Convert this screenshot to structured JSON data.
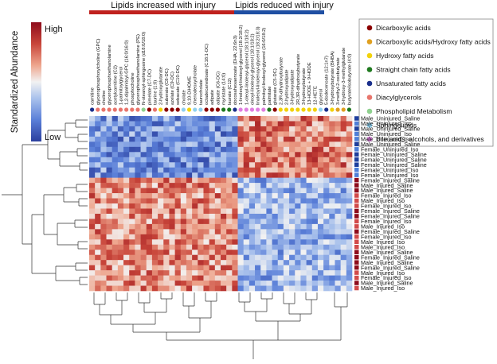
{
  "chart_data": {
    "type": "heatmap",
    "title": "",
    "group_labels": [
      "Lipids increased with injury",
      "Lipids reduced with injury"
    ],
    "group_colors": [
      "#c0211e",
      "#1f4fa3"
    ],
    "colorbar": {
      "label": "Standardized Abundance",
      "high_label": "High",
      "low_label": "Low",
      "stops": [
        "#8e0c1c",
        "#c8453a",
        "#eea58d",
        "#f2f2f2",
        "#a9c1ec",
        "#5a7fd8",
        "#2b3f9e"
      ]
    },
    "columns": [
      "carnitine",
      "glycerophosphorylcholine (GPC)",
      "choline",
      "glycerophosphoethanolamine",
      "acetylcarnitine (C2)",
      "1-palmitoylglycerol",
      "1,2-dipalmitoyl-GPC (16:0/16:0)",
      "phosphocholine",
      "glycerophosphoethanolamine (PE)",
      "N-stearoyl-sphingosine (d18:0/18:0)",
      "pimelate (C7-DC)",
      "taurine (1:0)",
      "2-hydroxyglutarate",
      "suberate (C8-DC)",
      "azelate (C9-DC)",
      "sebacate (C10-DC)",
      "cholate",
      "9,10-DiHOME",
      "chenodeoxycholate",
      "taurocholate",
      "octadecanedioate (C18:1-DC)",
      "adipate",
      "adipate (C6-DC)",
      "myristate (14:0)",
      "laurate (C12)",
      "docosahexaenoate (DHA; 22:6n3)",
      "1-linoleoyl-linoleoyl-glycerol (18:2/18:2)",
      "1-oleoyl-linoleoyl-glycerol (18:1/18:2)",
      "oleoyl-linoleoyl-glycerol (18:1/18:2)",
      "linoleoyl-linolenoyl-glycerol (18:2/18:3)",
      "palmitoyl-linoleoyl-glycerol (16:0/18:2)",
      "palmitate",
      "glutarate (C5-DC)",
      "2,3R-dihydroxybutyrate",
      "2-hydroxyadipate",
      "3-hydroxyadipate",
      "2R,3R-dihydroxybutyrate",
      "3-hydroxybutyrate",
      "13-HODE + 9-HODE",
      "12-HETE",
      "glycerol",
      "5-dodecenoate (12:1n7)",
      "3-hydroxybutyrate (BHBA)",
      "3-methyl-2-oxobutyrate",
      "3-hydroxy-3-methylglutarate",
      "butyrate/isobutyrate (4:0)"
    ],
    "column_classes": [
      4,
      5,
      5,
      5,
      5,
      5,
      5,
      5,
      5,
      6,
      0,
      5,
      2,
      0,
      0,
      0,
      7,
      2,
      7,
      7,
      0,
      0,
      0,
      3,
      3,
      4,
      8,
      8,
      8,
      8,
      8,
      3,
      0,
      2,
      2,
      2,
      2,
      2,
      2,
      2,
      7,
      4,
      2,
      1,
      1,
      3
    ],
    "rows": [
      "Male_Uninjured_Saline",
      "Male_Uninjured_Iso",
      "Male_Uninjured_Saline",
      "Male_Uninjured_Iso",
      "Male_Uninjured_Iso",
      "Male_Uninjured_Saline",
      "Female_Uninjured_Iso",
      "Female_Uninjured_Saline",
      "Female_Uninjured_Saline",
      "Female_Uninjured_Saline",
      "Female_Uninjured_Iso",
      "Female_Uninjured_Iso",
      "Female_Injured_Saline",
      "Male_Injured_Saline",
      "Male_Injured_Saline",
      "Female_Injured_Iso",
      "Male_Injured_Iso",
      "Female_Injured_Iso",
      "Female_Injured_Saline",
      "Female_Injured_Saline",
      "Female_Injured_Iso",
      "Male_Injured_Iso",
      "Female_Injured_Saline",
      "Female_Injured_Iso",
      "Male_Injured_Iso",
      "Male_Injured_Iso",
      "Male_Injured_Saline",
      "Female_Injured_Saline",
      "Male_Injured_Saline",
      "Female_Injured_Saline",
      "Male_Injured_Iso",
      "Female_Injured_Iso",
      "Male_Injured_Saline",
      "Male_Injured_Iso"
    ],
    "row_groups": [
      0,
      0,
      0,
      0,
      0,
      0,
      0,
      0,
      0,
      0,
      0,
      0,
      1,
      1,
      1,
      1,
      1,
      1,
      1,
      1,
      1,
      1,
      1,
      1,
      1,
      1,
      1,
      1,
      1,
      1,
      1,
      1,
      1,
      1
    ],
    "column_groups": [
      0,
      0,
      0,
      0,
      0,
      0,
      0,
      0,
      0,
      0,
      0,
      0,
      0,
      0,
      0,
      0,
      0,
      0,
      0,
      0,
      0,
      0,
      0,
      0,
      0,
      0,
      1,
      1,
      1,
      1,
      1,
      1,
      1,
      1,
      1,
      1,
      1,
      1,
      1,
      1,
      1,
      1,
      1,
      1,
      1,
      1
    ],
    "value_range": [
      -2.5,
      2.5
    ],
    "legend": [
      {
        "label": "Dicarboxylic acids",
        "color": "#8b0000"
      },
      {
        "label": "Dicarboxylic acids/Hydroxy fatty acids",
        "color": "#e0a020"
      },
      {
        "label": "Hydroxy fatty acids",
        "color": "#f2d20a"
      },
      {
        "label": "Straight chain fatty acids",
        "color": "#1f7a1f"
      },
      {
        "label": "Unsaturated fatty acids",
        "color": "#1a2f8c"
      },
      {
        "label": "Diacylglycerols",
        "color": "#e8756c"
      },
      {
        "label": "Phospholipid Metabolism",
        "color": "#8fd18f"
      },
      {
        "label": "Sphingolipids",
        "color": "#8fd0ef"
      },
      {
        "label": "Bile acids, alcohols, and derivatives",
        "color": "#e07fe0"
      }
    ],
    "legend_position": "top-right"
  }
}
